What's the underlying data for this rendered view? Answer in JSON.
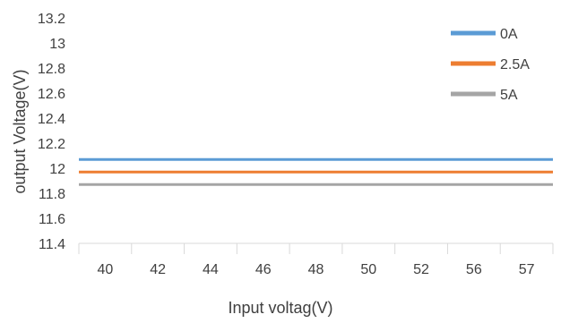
{
  "chart_data": {
    "type": "line",
    "title": "",
    "xlabel": "Input voltag(V)",
    "ylabel": "output Voltage(V)",
    "categories": [
      "40",
      "42",
      "44",
      "46",
      "48",
      "50",
      "52",
      "56",
      "57"
    ],
    "ylim": [
      11.4,
      13.2
    ],
    "yticks": [
      "11.4",
      "11.6",
      "11.8",
      "12",
      "12.2",
      "12.4",
      "12.6",
      "12.8",
      "13",
      "13.2"
    ],
    "grid": false,
    "legend_position": "top-right",
    "series": [
      {
        "name": "0A",
        "color": "#5b9bd5",
        "values": [
          12.07,
          12.07,
          12.07,
          12.07,
          12.07,
          12.07,
          12.07,
          12.07,
          12.07
        ]
      },
      {
        "name": "2.5A",
        "color": "#ed7d31",
        "values": [
          11.97,
          11.97,
          11.97,
          11.97,
          11.97,
          11.97,
          11.97,
          11.97,
          11.97
        ]
      },
      {
        "name": "5A",
        "color": "#a5a5a5",
        "values": [
          11.87,
          11.87,
          11.87,
          11.87,
          11.87,
          11.87,
          11.87,
          11.87,
          11.87
        ]
      }
    ]
  }
}
